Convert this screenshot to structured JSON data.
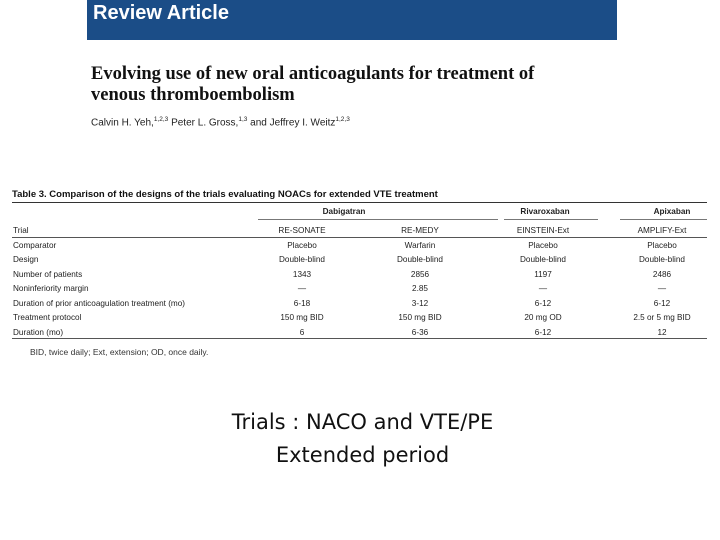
{
  "banner": {
    "label": "Review Article",
    "color": "#1b4d87"
  },
  "article": {
    "title_line1": "Evolving use of new oral anticoagulants for treatment of",
    "title_line2": "venous thromboembolism",
    "author1": "Calvin H. Yeh,",
    "author1_sup": "1,2,3",
    "author2": " Peter L. Gross,",
    "author2_sup": "1,3",
    "author3": " and Jeffrey I. Weitz",
    "author3_sup": "1,2,3"
  },
  "table": {
    "caption": "Table 3. Comparison of the designs of the trials evaluating NOACs for extended VTE treatment",
    "groups": [
      "Dabigatran",
      "Rivaroxaban",
      "Apixaban"
    ],
    "rows": [
      [
        "Trial",
        "RE-SONATE",
        "RE-MEDY",
        "EINSTEIN-Ext",
        "AMPLIFY-Ext"
      ],
      [
        "Comparator",
        "Placebo",
        "Warfarin",
        "Placebo",
        "Placebo"
      ],
      [
        "Design",
        "Double-blind",
        "Double-blind",
        "Double-blind",
        "Double-blind"
      ],
      [
        "Number of patients",
        "1343",
        "2856",
        "1197",
        "2486"
      ],
      [
        "Noninferiority margin",
        "—",
        "2.85",
        "—",
        "—"
      ],
      [
        "Duration of prior anticoagulation treatment (mo)",
        "6-18",
        "3-12",
        "6-12",
        "6-12"
      ],
      [
        "Treatment protocol",
        "150 mg BID",
        "150 mg BID",
        "20 mg OD",
        "2.5 or 5 mg BID"
      ],
      [
        "Duration (mo)",
        "6",
        "6-36",
        "6-12",
        "12"
      ]
    ],
    "footnote": "BID, twice daily; Ext, extension; OD, once daily."
  },
  "caption": {
    "line1": "Trials : NACO and VTE/PE",
    "line2": "Extended period"
  }
}
